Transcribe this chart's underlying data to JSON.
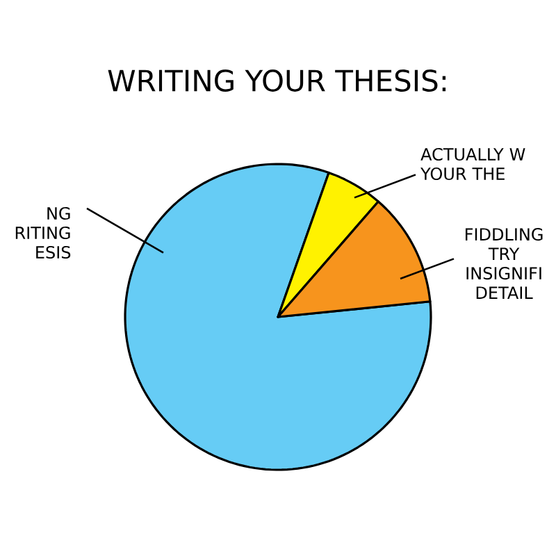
{
  "chart_data": {
    "type": "pie",
    "title": "WRITING YOUR THESIS:",
    "categories": [
      "NG RITING ESIS",
      "ACTUALLY W YOUR THE",
      "FIDDLING TRY INSIGNIFI DETAIL"
    ],
    "values": [
      82,
      6,
      12
    ],
    "colors": [
      "#66ccf5",
      "#fff200",
      "#f7941d"
    ]
  }
}
